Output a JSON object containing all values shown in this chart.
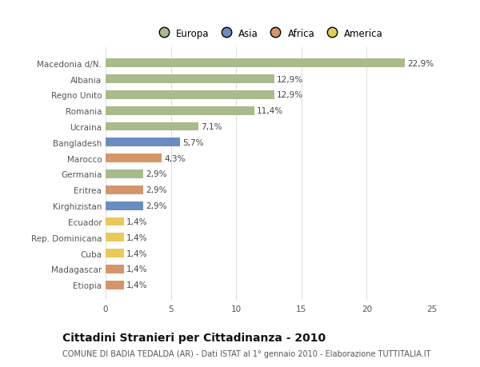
{
  "categories": [
    "Macedonia d/N.",
    "Albania",
    "Regno Unito",
    "Romania",
    "Ucraina",
    "Bangladesh",
    "Marocco",
    "Germania",
    "Eritrea",
    "Kirghizistan",
    "Ecuador",
    "Rep. Dominicana",
    "Cuba",
    "Madagascar",
    "Etiopia"
  ],
  "values": [
    22.9,
    12.9,
    12.9,
    11.4,
    7.1,
    5.7,
    4.3,
    2.9,
    2.9,
    2.9,
    1.4,
    1.4,
    1.4,
    1.4,
    1.4
  ],
  "labels": [
    "22,9%",
    "12,9%",
    "12,9%",
    "11,4%",
    "7,1%",
    "5,7%",
    "4,3%",
    "2,9%",
    "2,9%",
    "2,9%",
    "1,4%",
    "1,4%",
    "1,4%",
    "1,4%",
    "1,4%"
  ],
  "colors": [
    "#a8bb8a",
    "#a8bb8a",
    "#a8bb8a",
    "#a8bb8a",
    "#a8bb8a",
    "#6b8cbf",
    "#d4956a",
    "#a8bb8a",
    "#d4956a",
    "#6b8cbf",
    "#e8c95a",
    "#e8c95a",
    "#e8c95a",
    "#d4956a",
    "#d4956a"
  ],
  "legend_labels": [
    "Europa",
    "Asia",
    "Africa",
    "America"
  ],
  "legend_colors": [
    "#a8bb8a",
    "#6b8cbf",
    "#d4956a",
    "#e8c95a"
  ],
  "title": "Cittadini Stranieri per Cittadinanza - 2010",
  "subtitle": "COMUNE DI BADIA TEDALDA (AR) - Dati ISTAT al 1° gennaio 2010 - Elaborazione TUTTITALIA.IT",
  "xlim": [
    0,
    25
  ],
  "xticks": [
    0,
    5,
    10,
    15,
    20,
    25
  ],
  "background_color": "#ffffff",
  "grid_color": "#e0e0e0",
  "bar_height": 0.55,
  "label_fontsize": 7.5,
  "tick_fontsize": 7.5,
  "title_fontsize": 10,
  "subtitle_fontsize": 7
}
